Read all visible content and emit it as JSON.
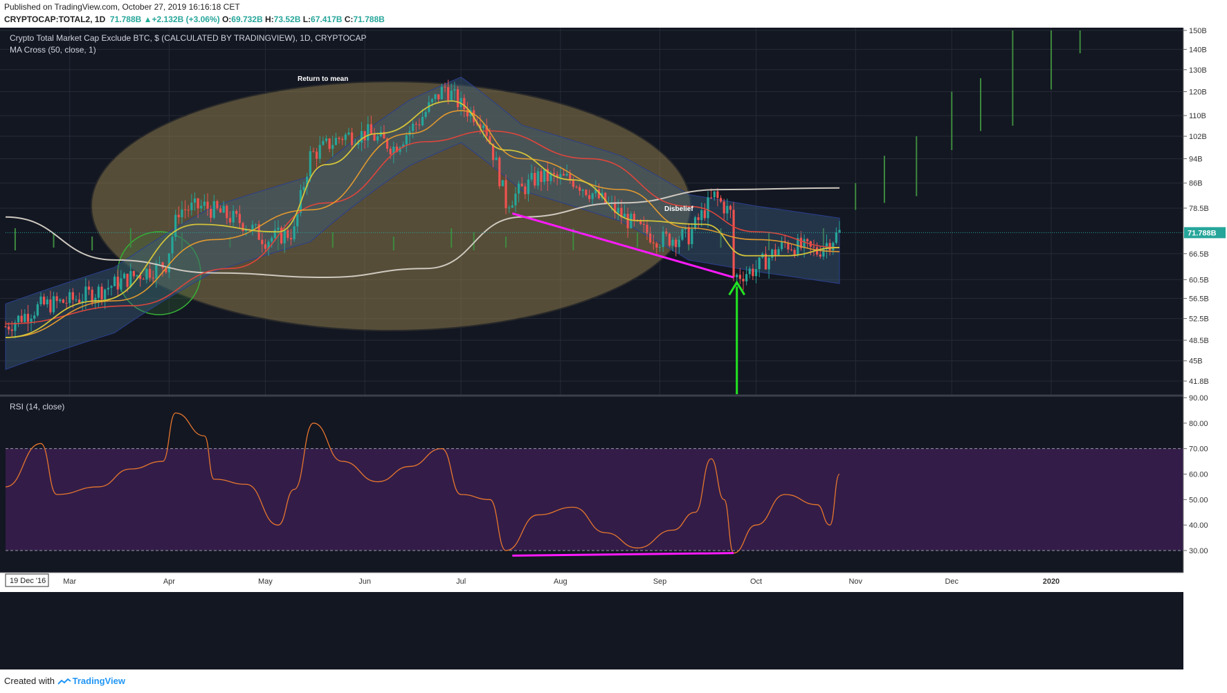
{
  "header": {
    "published": "Published on TradingView.com, October 27, 2019 16:16:18 CET",
    "symbol": "CRYPTOCAP:TOTAL2, 1D",
    "last": "71.788B",
    "change": "+2.132B (+3.06%)",
    "ohlc": {
      "o_label": "O:",
      "o": "69.732B",
      "h_label": "H:",
      "h": "73.52B",
      "l_label": "L:",
      "l": "67.417B",
      "c_label": "C:",
      "c": "71.788B"
    }
  },
  "footer": {
    "created_with": "Created with",
    "brand": "TradingView"
  },
  "colors": {
    "background": "#131722",
    "up": "#26a69a",
    "down": "#ef5350",
    "ma_yellow": "#d4c43a",
    "ma_orange": "#e39a2f",
    "ma_red": "#e0463c",
    "ma_white": "#cfc9c0",
    "rsi": "#e8762d",
    "rsi_band": "#3a1f4f",
    "annotation_magenta": "#ff1aff",
    "annotation_green": "#22e622"
  },
  "chart_data": {
    "type": "candlestick",
    "panes": [
      {
        "name": "price",
        "title": "Crypto Total Market Cap Exclude BTC, $ (CALCULATED BY TRADINGVIEW), 1D, CRYPTOCAP",
        "indicator": "MA Cross (50, close, 1)",
        "scale": "log",
        "y_ticks": [
          "150B",
          "140B",
          "130B",
          "120B",
          "110B",
          "102B",
          "94B",
          "86B",
          "78.5B",
          "71.788B",
          "66.5B",
          "60.5B",
          "56.5B",
          "52.5B",
          "48.5B",
          "45B",
          "41.8B"
        ],
        "last_price_label": "71.788B",
        "annotations": [
          "Return to mean",
          "Disbelief"
        ],
        "price_path": [
          {
            "x": "2019-02-09",
            "y": 51
          },
          {
            "x": "2019-02-20",
            "y": 55
          },
          {
            "x": "2019-03-01",
            "y": 56
          },
          {
            "x": "2019-03-10",
            "y": 58
          },
          {
            "x": "2019-03-20",
            "y": 61
          },
          {
            "x": "2019-03-31",
            "y": 64
          },
          {
            "x": "2019-04-04",
            "y": 78
          },
          {
            "x": "2019-04-12",
            "y": 79
          },
          {
            "x": "2019-04-25",
            "y": 74
          },
          {
            "x": "2019-05-01",
            "y": 70
          },
          {
            "x": "2019-05-10",
            "y": 72
          },
          {
            "x": "2019-05-15",
            "y": 95
          },
          {
            "x": "2019-05-25",
            "y": 102
          },
          {
            "x": "2019-06-02",
            "y": 103
          },
          {
            "x": "2019-06-10",
            "y": 98
          },
          {
            "x": "2019-06-18",
            "y": 108
          },
          {
            "x": "2019-06-26",
            "y": 122
          },
          {
            "x": "2019-07-01",
            "y": 114
          },
          {
            "x": "2019-07-08",
            "y": 108
          },
          {
            "x": "2019-07-15",
            "y": 80
          },
          {
            "x": "2019-07-25",
            "y": 88
          },
          {
            "x": "2019-08-05",
            "y": 87
          },
          {
            "x": "2019-08-15",
            "y": 80
          },
          {
            "x": "2019-08-25",
            "y": 73
          },
          {
            "x": "2019-09-01",
            "y": 70
          },
          {
            "x": "2019-09-10",
            "y": 71
          },
          {
            "x": "2019-09-18",
            "y": 82
          },
          {
            "x": "2019-09-23",
            "y": 77
          },
          {
            "x": "2019-09-24",
            "y": 61
          },
          {
            "x": "2019-10-01",
            "y": 63
          },
          {
            "x": "2019-10-10",
            "y": 69
          },
          {
            "x": "2019-10-20",
            "y": 67
          },
          {
            "x": "2019-10-27",
            "y": 71.788
          }
        ],
        "ma_white_path": [
          {
            "x": "2019-02-09",
            "y": 76
          },
          {
            "x": "2019-03-15",
            "y": 65
          },
          {
            "x": "2019-04-15",
            "y": 62
          },
          {
            "x": "2019-05-20",
            "y": 61
          },
          {
            "x": "2019-06-20",
            "y": 63
          },
          {
            "x": "2019-07-20",
            "y": 76
          },
          {
            "x": "2019-08-20",
            "y": 80
          },
          {
            "x": "2019-09-20",
            "y": 84
          },
          {
            "x": "2019-10-27",
            "y": 84.5
          }
        ],
        "ma_red_path": [
          {
            "x": "2019-02-09",
            "y": 51.5
          },
          {
            "x": "2019-03-20",
            "y": 55
          },
          {
            "x": "2019-04-20",
            "y": 63
          },
          {
            "x": "2019-05-20",
            "y": 80
          },
          {
            "x": "2019-06-20",
            "y": 100
          },
          {
            "x": "2019-07-10",
            "y": 104
          },
          {
            "x": "2019-08-10",
            "y": 94
          },
          {
            "x": "2019-09-10",
            "y": 79
          },
          {
            "x": "2019-10-01",
            "y": 72
          },
          {
            "x": "2019-10-27",
            "y": 68
          }
        ],
        "ma_orange_path": [
          {
            "x": "2019-02-09",
            "y": 49
          },
          {
            "x": "2019-03-15",
            "y": 56
          },
          {
            "x": "2019-04-15",
            "y": 70
          },
          {
            "x": "2019-05-15",
            "y": 78
          },
          {
            "x": "2019-06-15",
            "y": 103
          },
          {
            "x": "2019-07-01",
            "y": 112
          },
          {
            "x": "2019-07-20",
            "y": 94
          },
          {
            "x": "2019-08-20",
            "y": 84
          },
          {
            "x": "2019-09-10",
            "y": 73
          },
          {
            "x": "2019-10-01",
            "y": 70
          },
          {
            "x": "2019-10-27",
            "y": 67
          }
        ],
        "ma_yellow_path": [
          {
            "x": "2019-02-09",
            "y": 49
          },
          {
            "x": "2019-03-10",
            "y": 56
          },
          {
            "x": "2019-04-10",
            "y": 74
          },
          {
            "x": "2019-05-05",
            "y": 72
          },
          {
            "x": "2019-05-20",
            "y": 92
          },
          {
            "x": "2019-06-05",
            "y": 103
          },
          {
            "x": "2019-06-28",
            "y": 116
          },
          {
            "x": "2019-07-15",
            "y": 97
          },
          {
            "x": "2019-08-05",
            "y": 87
          },
          {
            "x": "2019-08-25",
            "y": 75
          },
          {
            "x": "2019-09-15",
            "y": 74
          },
          {
            "x": "2019-09-28",
            "y": 66
          },
          {
            "x": "2019-10-10",
            "y": 66
          },
          {
            "x": "2019-10-27",
            "y": 68
          }
        ],
        "trendline_magenta": [
          {
            "x": "2019-07-17",
            "y": 77
          },
          {
            "x": "2019-09-24",
            "y": 61
          }
        ],
        "projection_bars": [
          {
            "x": "2019-11-01",
            "low": 78,
            "high": 86
          },
          {
            "x": "2019-11-10",
            "low": 80,
            "high": 95
          },
          {
            "x": "2019-11-20",
            "low": 82,
            "high": 102
          },
          {
            "x": "2019-12-01",
            "low": 97,
            "high": 120
          },
          {
            "x": "2019-12-10",
            "low": 104,
            "high": 126
          },
          {
            "x": "2019-12-20",
            "low": 106,
            "high": 150
          },
          {
            "x": "2020-01-01",
            "low": 121,
            "high": 150
          },
          {
            "x": "2020-01-10",
            "low": 138,
            "high": 150
          }
        ]
      },
      {
        "name": "rsi",
        "title": "RSI (14, close)",
        "y_ticks": [
          "90.00",
          "80.00",
          "70.00",
          "60.00",
          "50.00",
          "40.00",
          "30.00"
        ],
        "band": [
          30,
          70
        ],
        "rsi_path": [
          {
            "x": "2019-02-09",
            "y": 55
          },
          {
            "x": "2019-02-20",
            "y": 72
          },
          {
            "x": "2019-02-25",
            "y": 52
          },
          {
            "x": "2019-03-10",
            "y": 55
          },
          {
            "x": "2019-03-20",
            "y": 62
          },
          {
            "x": "2019-03-30",
            "y": 65
          },
          {
            "x": "2019-04-03",
            "y": 84
          },
          {
            "x": "2019-04-12",
            "y": 75
          },
          {
            "x": "2019-04-15",
            "y": 58
          },
          {
            "x": "2019-04-25",
            "y": 56
          },
          {
            "x": "2019-05-05",
            "y": 40
          },
          {
            "x": "2019-05-10",
            "y": 54
          },
          {
            "x": "2019-05-16",
            "y": 80
          },
          {
            "x": "2019-05-25",
            "y": 65
          },
          {
            "x": "2019-06-05",
            "y": 57
          },
          {
            "x": "2019-06-15",
            "y": 63
          },
          {
            "x": "2019-06-25",
            "y": 70
          },
          {
            "x": "2019-07-01",
            "y": 52
          },
          {
            "x": "2019-07-10",
            "y": 50
          },
          {
            "x": "2019-07-15",
            "y": 30
          },
          {
            "x": "2019-07-25",
            "y": 44
          },
          {
            "x": "2019-08-05",
            "y": 47
          },
          {
            "x": "2019-08-15",
            "y": 37
          },
          {
            "x": "2019-08-25",
            "y": 31
          },
          {
            "x": "2019-09-05",
            "y": 38
          },
          {
            "x": "2019-09-12",
            "y": 45
          },
          {
            "x": "2019-09-17",
            "y": 66
          },
          {
            "x": "2019-09-21",
            "y": 50
          },
          {
            "x": "2019-09-24",
            "y": 29
          },
          {
            "x": "2019-10-01",
            "y": 40
          },
          {
            "x": "2019-10-10",
            "y": 52
          },
          {
            "x": "2019-10-20",
            "y": 48
          },
          {
            "x": "2019-10-24",
            "y": 40
          },
          {
            "x": "2019-10-27",
            "y": 60
          }
        ],
        "trendline_magenta": [
          {
            "x": "2019-07-17",
            "y": 28
          },
          {
            "x": "2019-09-24",
            "y": 29
          }
        ]
      }
    ],
    "x_ticks": [
      "19 Dec '16",
      "Mar",
      "Apr",
      "May",
      "Jun",
      "Jul",
      "Aug",
      "Sep",
      "Oct",
      "Nov",
      "Dec",
      "2020"
    ]
  }
}
